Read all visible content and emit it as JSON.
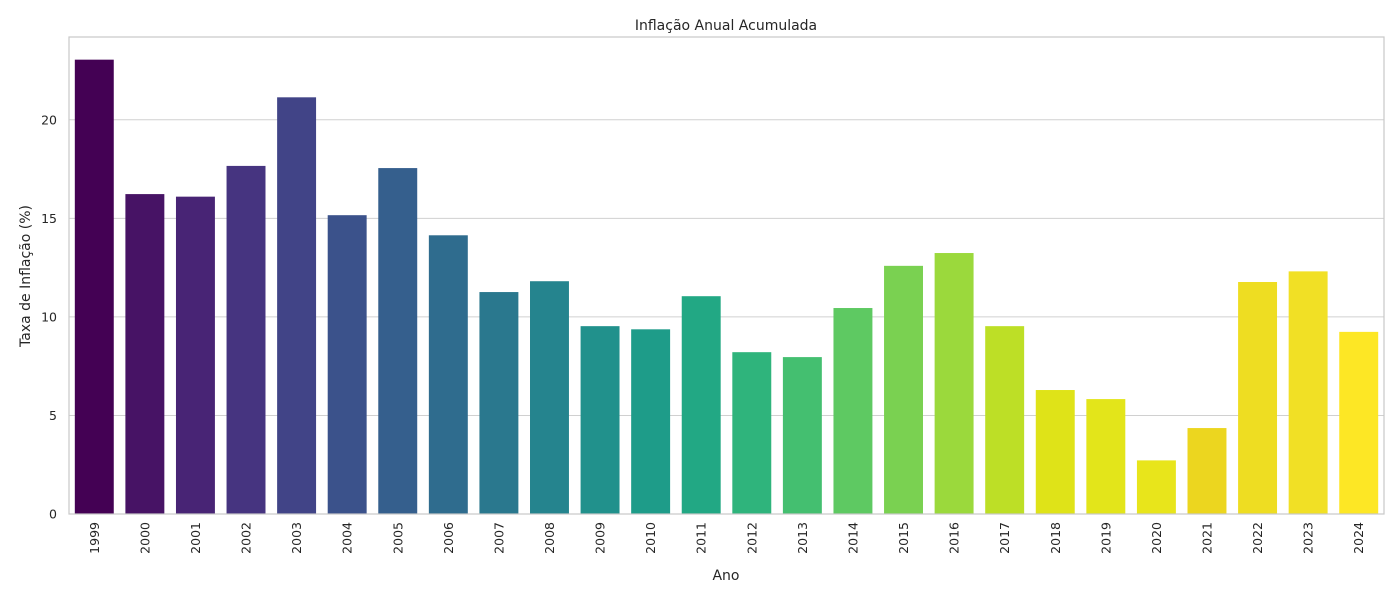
{
  "chart_data": {
    "type": "bar",
    "title": "Inflação Anual Acumulada",
    "xlabel": "Ano",
    "ylabel": "Taxa de Inflação (%)",
    "ylim": [
      0,
      24.2
    ],
    "yticks": [
      0,
      5,
      10,
      15,
      20
    ],
    "grid": true,
    "categories": [
      "1999",
      "2000",
      "2001",
      "2002",
      "2003",
      "2004",
      "2005",
      "2006",
      "2007",
      "2008",
      "2009",
      "2010",
      "2011",
      "2012",
      "2013",
      "2014",
      "2015",
      "2016",
      "2017",
      "2018",
      "2019",
      "2020",
      "2021",
      "2022",
      "2023",
      "2024"
    ],
    "values": [
      23.05,
      16.23,
      16.1,
      17.66,
      21.14,
      15.16,
      17.55,
      14.14,
      11.26,
      11.81,
      9.53,
      9.37,
      11.05,
      8.21,
      7.96,
      10.45,
      12.59,
      13.24,
      9.53,
      6.29,
      5.83,
      2.72,
      4.36,
      11.77,
      12.31,
      9.24
    ],
    "colors": [
      "#440154",
      "#471365",
      "#482475",
      "#463480",
      "#414487",
      "#3b528b",
      "#355f8d",
      "#2f6c8e",
      "#2a788e",
      "#25848e",
      "#21918c",
      "#1e9c89",
      "#22a884",
      "#2fb47c",
      "#44bf70",
      "#5ec962",
      "#7ad151",
      "#9bd93c",
      "#bddf26",
      "#dfe318",
      "#e3e51a",
      "#e8e51b",
      "#ecd61f",
      "#eedd22",
      "#f1e025",
      "#fde725"
    ]
  }
}
